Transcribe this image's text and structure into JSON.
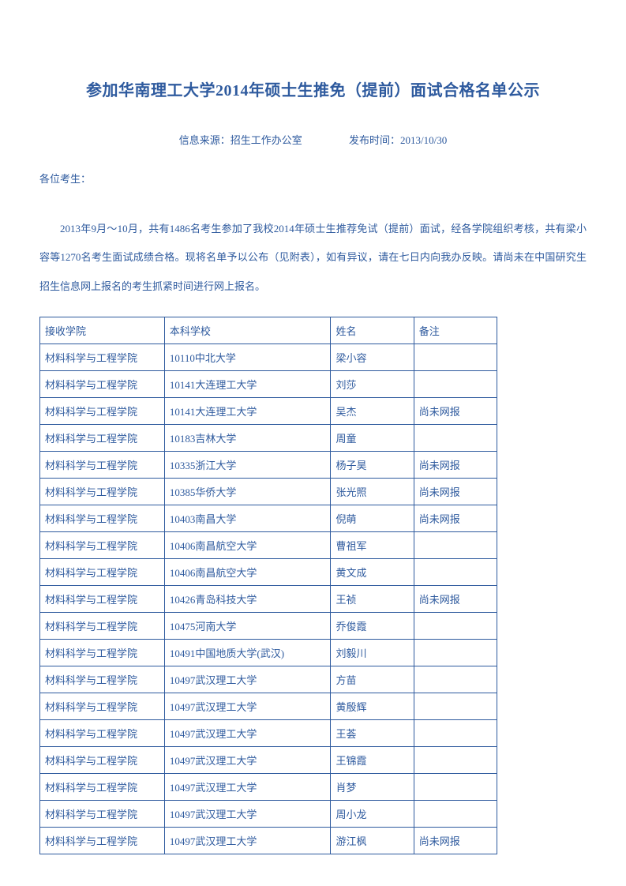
{
  "title": "参加华南理工大学2014年硕士生推免（提前）面试合格名单公示",
  "meta": {
    "source_label": "信息来源：",
    "source_value": "招生工作办公室",
    "time_label": "发布时间：",
    "time_value": "2013/10/30"
  },
  "salutation": "各位考生：",
  "body": "2013年9月～10月，共有1486名考生参加了我校2014年硕士生推荐免试（提前）面试，经各学院组织考核，共有梁小容等1270名考生面试成绩合格。现将名单予以公布（见附表），如有异议，请在七日内向我办反映。请尚未在中国研究生招生信息网上报名的考生抓紧时间进行网上报名。",
  "table": {
    "headers": [
      "接收学院",
      "本科学校",
      "姓名",
      "备注"
    ],
    "rows": [
      [
        "材料科学与工程学院",
        "10110中北大学",
        "梁小容",
        ""
      ],
      [
        "材料科学与工程学院",
        "10141大连理工大学",
        "刘莎",
        ""
      ],
      [
        "材料科学与工程学院",
        "10141大连理工大学",
        "吴杰",
        "尚未网报"
      ],
      [
        "材料科学与工程学院",
        "10183吉林大学",
        "周童",
        ""
      ],
      [
        "材料科学与工程学院",
        "10335浙江大学",
        "杨子昊",
        "尚未网报"
      ],
      [
        "材料科学与工程学院",
        "10385华侨大学",
        "张光照",
        "尚未网报"
      ],
      [
        "材料科学与工程学院",
        "10403南昌大学",
        "倪萌",
        "尚未网报"
      ],
      [
        "材料科学与工程学院",
        "10406南昌航空大学",
        "曹祖军",
        ""
      ],
      [
        "材料科学与工程学院",
        "10406南昌航空大学",
        "黄文成",
        ""
      ],
      [
        "材料科学与工程学院",
        "10426青岛科技大学",
        "王祯",
        "尚未网报"
      ],
      [
        "材料科学与工程学院",
        "10475河南大学",
        "乔俊霞",
        ""
      ],
      [
        "材料科学与工程学院",
        "10491中国地质大学(武汉)",
        "刘毅川",
        ""
      ],
      [
        "材料科学与工程学院",
        "10497武汉理工大学",
        "方苗",
        ""
      ],
      [
        "材料科学与工程学院",
        "10497武汉理工大学",
        "黄殷辉",
        ""
      ],
      [
        "材料科学与工程学院",
        "10497武汉理工大学",
        "王荟",
        ""
      ],
      [
        "材料科学与工程学院",
        "10497武汉理工大学",
        "王锦霞",
        ""
      ],
      [
        "材料科学与工程学院",
        "10497武汉理工大学",
        "肖梦",
        ""
      ],
      [
        "材料科学与工程学院",
        "10497武汉理工大学",
        "周小龙",
        ""
      ],
      [
        "材料科学与工程学院",
        "10497武汉理工大学",
        "游江枫",
        "尚未网报"
      ]
    ]
  },
  "colors": {
    "text": "#2e5a9e",
    "border": "#2e5a9e",
    "background": "#ffffff"
  }
}
